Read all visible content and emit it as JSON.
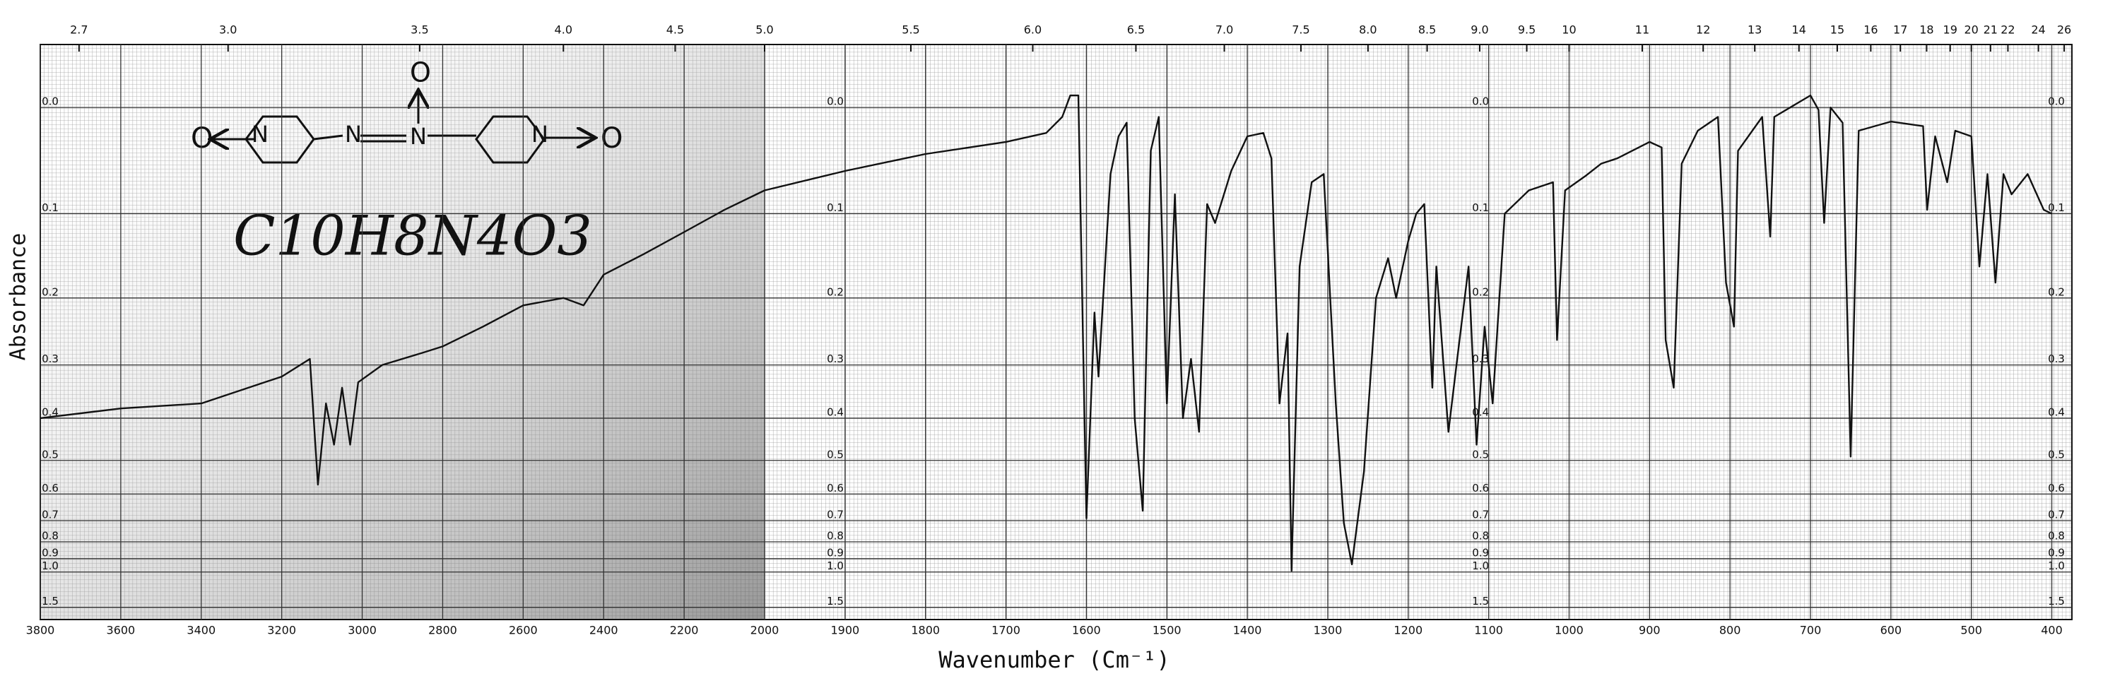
{
  "chart_data": {
    "type": "line",
    "xlabel": "Wavenumber (Cm⁻¹)",
    "ylabel": "Absorbance",
    "annotations": [
      "C10H8N4O3"
    ],
    "structure_atoms": [
      "O",
      "N",
      "N",
      "N",
      "O",
      "N",
      "O"
    ],
    "xlim": [
      3800,
      375
    ],
    "xscale_change": 2000,
    "xticks": [
      3800,
      3600,
      3400,
      3200,
      3000,
      2800,
      2600,
      2400,
      2200,
      2000,
      1900,
      1800,
      1700,
      1600,
      1500,
      1400,
      1300,
      1200,
      1100,
      1000,
      900,
      800,
      700,
      600,
      500,
      400
    ],
    "x2ticks": [
      2.7,
      3.0,
      3.5,
      4.0,
      4.5,
      5.0,
      5.5,
      6.0,
      6.5,
      7.0,
      7.5,
      8.0,
      8.5,
      9.0,
      9.5,
      10,
      11,
      12,
      13,
      14,
      15,
      16,
      17,
      18,
      19,
      20,
      21,
      22,
      24,
      26
    ],
    "x2ticks_labels": [
      "2.7",
      "3.0",
      "3.5",
      "4.0",
      "4.5",
      "5.0",
      "5.5",
      "6.0",
      "6.5",
      "7.0",
      "7.5",
      "8.0",
      "8.5",
      "9.0",
      "9.5",
      "10",
      "11",
      "12",
      "13",
      "14",
      "15",
      "16",
      "17",
      "18",
      "19",
      "20",
      "21",
      "22",
      "24",
      "26"
    ],
    "ylim": [
      -0.05,
      2.1
    ],
    "yscale": "transmittance",
    "yticks": [
      {
        "value": 0,
        "label": "0.0"
      },
      0.1,
      0.2,
      0.3,
      0.4,
      0.5,
      0.6,
      0.7,
      0.8,
      0.9,
      {
        "value": 1,
        "label": "1.0"
      },
      1.5
    ],
    "grid": true,
    "color": "#111111",
    "x": [
      3800,
      3600,
      3400,
      3200,
      3130,
      3110,
      3090,
      3070,
      3050,
      3030,
      3010,
      2950,
      2850,
      2800,
      2700,
      2600,
      2500,
      2450,
      2400,
      2300,
      2200,
      2100,
      2000,
      1900,
      1800,
      1700,
      1650,
      1630,
      1620,
      1610,
      1600,
      1590,
      1585,
      1570,
      1560,
      1550,
      1540,
      1530,
      1520,
      1510,
      1500,
      1490,
      1480,
      1470,
      1460,
      1450,
      1440,
      1420,
      1400,
      1380,
      1370,
      1360,
      1350,
      1345,
      1335,
      1320,
      1305,
      1290,
      1280,
      1270,
      1255,
      1240,
      1225,
      1215,
      1200,
      1190,
      1180,
      1170,
      1165,
      1150,
      1140,
      1125,
      1115,
      1105,
      1095,
      1080,
      1050,
      1020,
      1015,
      1005,
      980,
      960,
      940,
      900,
      885,
      880,
      870,
      860,
      840,
      815,
      805,
      795,
      790,
      760,
      750,
      745,
      700,
      690,
      683,
      675,
      660,
      650,
      640,
      600,
      560,
      555,
      545,
      530,
      520,
      500,
      490,
      480,
      470,
      460,
      450,
      430,
      410,
      400
    ],
    "values": [
      0.4,
      0.38,
      0.37,
      0.32,
      0.29,
      0.57,
      0.37,
      0.46,
      0.34,
      0.46,
      0.33,
      0.3,
      0.28,
      0.27,
      0.24,
      0.21,
      0.2,
      0.21,
      0.17,
      0.145,
      0.12,
      0.096,
      0.076,
      0.057,
      0.041,
      0.03,
      0.022,
      0.008,
      -0.01,
      -0.01,
      0.69,
      0.22,
      0.32,
      0.06,
      0.025,
      0.013,
      0.4,
      0.66,
      0.038,
      0.008,
      0.37,
      0.08,
      0.4,
      0.29,
      0.43,
      0.09,
      0.11,
      0.057,
      0.025,
      0.022,
      0.045,
      0.37,
      0.25,
      0.99,
      0.16,
      0.068,
      0.06,
      0.37,
      0.71,
      0.94,
      0.53,
      0.2,
      0.15,
      0.2,
      0.13,
      0.1,
      0.09,
      0.34,
      0.16,
      0.43,
      0.3,
      0.16,
      0.46,
      0.24,
      0.37,
      0.1,
      0.076,
      0.068,
      0.26,
      0.076,
      0.062,
      0.05,
      0.045,
      0.03,
      0.035,
      0.26,
      0.34,
      0.05,
      0.02,
      0.008,
      0.18,
      0.24,
      0.038,
      0.008,
      0.125,
      0.008,
      -0.01,
      0.002,
      0.11,
      0,
      0.013,
      0.49,
      0.02,
      0.012,
      0.016,
      0.096,
      0.025,
      0.068,
      0.02,
      0.025,
      0.16,
      0.06,
      0.18,
      0.06,
      0.08,
      0.06,
      0.096,
      0.1
    ]
  }
}
